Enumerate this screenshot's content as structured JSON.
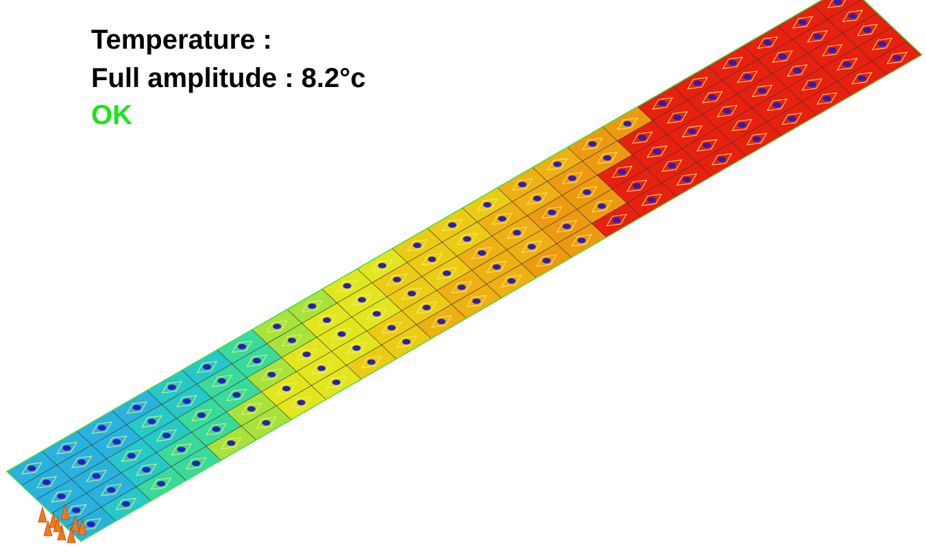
{
  "overlay": {
    "title": "Temperature :",
    "amplitude": "Full amplitude : 8.2°c",
    "status": "OK"
  }
}
